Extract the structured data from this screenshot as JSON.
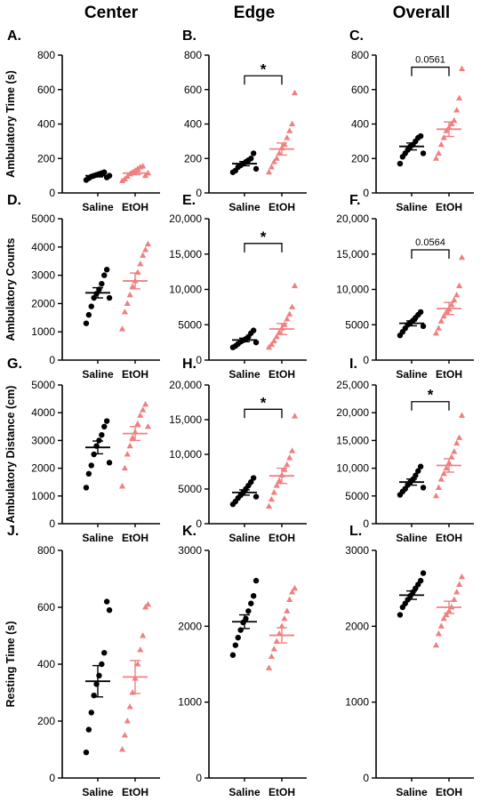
{
  "figure": {
    "column_headers": [
      "Center",
      "Edge",
      "Overall"
    ],
    "colors": {
      "saline": "#000000",
      "etoh": "#f08080",
      "axis": "#000000"
    },
    "marker_shapes": {
      "saline": "circle",
      "etoh": "triangle"
    }
  },
  "chart_data": [
    {
      "panel": "A.",
      "type": "scatter",
      "ylabel": "Ambulatory Time  (s)",
      "categories": [
        "Saline",
        "EtOH"
      ],
      "ylim": [
        0,
        800
      ],
      "yticks": [
        0,
        200,
        400,
        600,
        800
      ],
      "ytick_labels": [
        "0",
        "200",
        "400",
        "600",
        "800"
      ],
      "series": [
        {
          "values": [
            75,
            85,
            95,
            100,
            105,
            110,
            115,
            120,
            90,
            100
          ],
          "mean": 100,
          "sem": 7
        },
        {
          "values": [
            70,
            80,
            95,
            110,
            120,
            130,
            140,
            150,
            155,
            100,
            115
          ],
          "mean": 115,
          "sem": 9
        }
      ],
      "significance": null
    },
    {
      "panel": "B.",
      "type": "scatter",
      "ylabel": "",
      "categories": [
        "Saline",
        "EtOH"
      ],
      "ylim": [
        0,
        800
      ],
      "yticks": [
        0,
        200,
        400,
        600,
        800
      ],
      "ytick_labels": [
        "0",
        "200",
        "400",
        "600",
        "800"
      ],
      "series": [
        {
          "values": [
            120,
            130,
            150,
            160,
            170,
            180,
            190,
            200,
            230,
            140
          ],
          "mean": 170,
          "sem": 12
        },
        {
          "values": [
            120,
            150,
            180,
            200,
            230,
            260,
            280,
            320,
            360,
            400,
            580
          ],
          "mean": 255,
          "sem": 35
        }
      ],
      "significance": {
        "text": "*",
        "y": 680
      }
    },
    {
      "panel": "C.",
      "type": "scatter",
      "ylabel": "",
      "categories": [
        "Saline",
        "EtOH"
      ],
      "ylim": [
        0,
        800
      ],
      "yticks": [
        0,
        200,
        400,
        600,
        800
      ],
      "ytick_labels": [
        "0",
        "200",
        "400",
        "600",
        "800"
      ],
      "series": [
        {
          "values": [
            170,
            210,
            230,
            250,
            270,
            280,
            300,
            320,
            330,
            230
          ],
          "mean": 270,
          "sem": 20
        },
        {
          "values": [
            200,
            230,
            280,
            320,
            360,
            380,
            400,
            420,
            480,
            550,
            720
          ],
          "mean": 370,
          "sem": 42
        }
      ],
      "significance": {
        "text": "0.0561",
        "y": 730
      }
    },
    {
      "panel": "D.",
      "type": "scatter",
      "ylabel": "Ambulatory  Counts",
      "categories": [
        "Saline",
        "EtOH"
      ],
      "ylim": [
        0,
        5000
      ],
      "yticks": [
        0,
        1000,
        2000,
        3000,
        4000,
        5000
      ],
      "ytick_labels": [
        "0",
        "1000",
        "2000",
        "3000",
        "4000",
        "5000"
      ],
      "series": [
        {
          "values": [
            1300,
            1600,
            1900,
            2200,
            2350,
            2500,
            2700,
            3000,
            3200,
            2200
          ],
          "mean": 2380,
          "sem": 180
        },
        {
          "values": [
            1100,
            1700,
            2000,
            2300,
            2600,
            2800,
            3100,
            3400,
            3700,
            3900,
            4100
          ],
          "mean": 2800,
          "sem": 280
        }
      ],
      "significance": null
    },
    {
      "panel": "E.",
      "type": "scatter",
      "ylabel": "",
      "categories": [
        "Saline",
        "EtOH"
      ],
      "ylim": [
        0,
        20000
      ],
      "yticks": [
        0,
        5000,
        10000,
        15000,
        20000
      ],
      "ytick_labels": [
        "0",
        "5000",
        "10,000",
        "15,000",
        "20,000"
      ],
      "series": [
        {
          "values": [
            1800,
            2000,
            2300,
            2600,
            2800,
            3000,
            3300,
            3800,
            4200,
            2500
          ],
          "mean": 2850,
          "sem": 250
        },
        {
          "values": [
            1800,
            2200,
            2700,
            3300,
            3900,
            4500,
            5000,
            5800,
            6500,
            7500,
            10500
          ],
          "mean": 4400,
          "sem": 780
        }
      ],
      "significance": {
        "text": "*",
        "y": 16500
      }
    },
    {
      "panel": "F.",
      "type": "scatter",
      "ylabel": "",
      "categories": [
        "Saline",
        "EtOH"
      ],
      "ylim": [
        0,
        20000
      ],
      "yticks": [
        0,
        5000,
        10000,
        15000,
        20000
      ],
      "ytick_labels": [
        "0",
        "5000",
        "10,000",
        "15,000",
        "20,000"
      ],
      "series": [
        {
          "values": [
            3500,
            4000,
            4500,
            5000,
            5300,
            5600,
            6000,
            6400,
            6800,
            4800
          ],
          "mean": 5200,
          "sem": 350
        },
        {
          "values": [
            3800,
            4500,
            5500,
            6200,
            6800,
            7200,
            7800,
            8500,
            9200,
            10500,
            14500
          ],
          "mean": 7300,
          "sem": 860
        }
      ],
      "significance": {
        "text": "0.0564",
        "y": 15600
      }
    },
    {
      "panel": "G.",
      "type": "scatter",
      "ylabel": "Ambulatory Distance (cm)",
      "categories": [
        "Saline",
        "EtOH"
      ],
      "ylim": [
        0,
        5000
      ],
      "yticks": [
        0,
        1000,
        2000,
        3000,
        4000,
        5000
      ],
      "ytick_labels": [
        "0",
        "1000",
        "2000",
        "3000",
        "4000",
        "5000"
      ],
      "series": [
        {
          "values": [
            1300,
            1800,
            2100,
            2500,
            2800,
            3000,
            3200,
            3500,
            3700,
            2200
          ],
          "mean": 2750,
          "sem": 230
        },
        {
          "values": [
            1350,
            2000,
            2500,
            2800,
            3100,
            3300,
            3600,
            3900,
            4100,
            4300,
            3500
          ],
          "mean": 3250,
          "sem": 250
        }
      ],
      "significance": null
    },
    {
      "panel": "H.",
      "type": "scatter",
      "ylabel": "",
      "categories": [
        "Saline",
        "EtOH"
      ],
      "ylim": [
        0,
        20000
      ],
      "yticks": [
        0,
        5000,
        10000,
        15000,
        20000
      ],
      "ytick_labels": [
        "0",
        "5000",
        "10,000",
        "15,000",
        "20,000"
      ],
      "series": [
        {
          "values": [
            2800,
            3200,
            3700,
            4100,
            4500,
            5000,
            5500,
            6000,
            6600,
            3900
          ],
          "mean": 4500,
          "sem": 380
        },
        {
          "values": [
            2500,
            3500,
            4500,
            5500,
            6200,
            7000,
            7800,
            8500,
            9500,
            10500,
            15500
          ],
          "mean": 6900,
          "sem": 1100
        }
      ],
      "significance": {
        "text": "*",
        "y": 16500
      }
    },
    {
      "panel": "I.",
      "type": "scatter",
      "ylabel": "",
      "categories": [
        "Saline",
        "EtOH"
      ],
      "ylim": [
        0,
        25000
      ],
      "yticks": [
        0,
        5000,
        10000,
        15000,
        20000,
        25000
      ],
      "ytick_labels": [
        "0",
        "5000",
        "10,000",
        "15,000",
        "20,000",
        "25,000"
      ],
      "series": [
        {
          "values": [
            5200,
            5800,
            6300,
            7000,
            7500,
            8000,
            8700,
            9500,
            10300,
            6500
          ],
          "mean": 7500,
          "sem": 550
        },
        {
          "values": [
            5000,
            6500,
            8000,
            9000,
            10000,
            11000,
            12000,
            13000,
            14500,
            15500,
            19500
          ],
          "mean": 10500,
          "sem": 1200
        }
      ],
      "significance": {
        "text": "*",
        "y": 22000
      }
    },
    {
      "panel": "J.",
      "type": "scatter",
      "ylabel": "Resting  Time  (s)",
      "categories": [
        "Saline",
        "EtOH"
      ],
      "ylim": [
        0,
        800
      ],
      "yticks": [
        0,
        200,
        400,
        600,
        800
      ],
      "ytick_labels": [
        "0",
        "200",
        "400",
        "600",
        "800"
      ],
      "series": [
        {
          "values": [
            90,
            170,
            230,
            290,
            330,
            360,
            400,
            440,
            620,
            590
          ],
          "mean": 340,
          "sem": 55
        },
        {
          "values": [
            100,
            150,
            200,
            250,
            300,
            350,
            400,
            450,
            500,
            600,
            610
          ],
          "mean": 355,
          "sem": 58
        }
      ],
      "significance": null
    },
    {
      "panel": "K.",
      "type": "scatter",
      "ylabel": "",
      "categories": [
        "Saline",
        "EtOH"
      ],
      "ylim": [
        0,
        3000
      ],
      "yticks": [
        0,
        1000,
        2000,
        3000
      ],
      "ytick_labels": [
        "0",
        "1000",
        "2000",
        "3000"
      ],
      "series": [
        {
          "values": [
            1620,
            1750,
            1850,
            1950,
            2050,
            2100,
            2200,
            2300,
            2400,
            2600
          ],
          "mean": 2060,
          "sem": 90
        },
        {
          "values": [
            1450,
            1600,
            1700,
            1800,
            1900,
            2000,
            2100,
            2200,
            2350,
            2450,
            2500
          ],
          "mean": 1880,
          "sem": 100
        }
      ],
      "significance": null
    },
    {
      "panel": "L.",
      "type": "scatter",
      "ylabel": "",
      "categories": [
        "Saline",
        "EtOH"
      ],
      "ylim": [
        0,
        3000
      ],
      "yticks": [
        0,
        1000,
        2000,
        3000
      ],
      "ytick_labels": [
        "0",
        "1000",
        "2000",
        "3000"
      ],
      "series": [
        {
          "values": [
            2150,
            2250,
            2300,
            2350,
            2400,
            2450,
            2500,
            2550,
            2600,
            2700
          ],
          "mean": 2410,
          "sem": 55
        },
        {
          "values": [
            1750,
            1900,
            2000,
            2100,
            2150,
            2200,
            2250,
            2350,
            2450,
            2550,
            2650
          ],
          "mean": 2250,
          "sem": 80
        }
      ],
      "significance": null
    }
  ]
}
